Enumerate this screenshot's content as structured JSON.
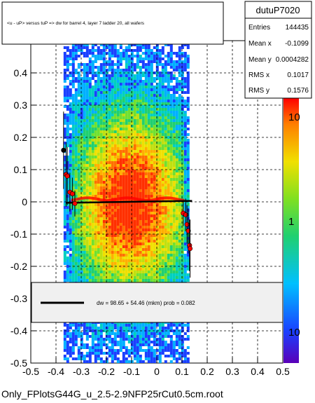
{
  "chart_data": {
    "type": "heatmap",
    "title": "<u - uP>       versus  tuP =>  dw for barrel 4, layer 7 ladder 20, all wafers",
    "xlabel": "",
    "ylabel": "",
    "xlim": [
      -0.5,
      0.5
    ],
    "ylim": [
      -0.5,
      0.5
    ],
    "x_ticks": [
      "-0.5",
      "-0.4",
      "-0.3",
      "-0.2",
      "-0.1",
      "0",
      "0.1",
      "0.2",
      "0.3",
      "0.4",
      "0.5"
    ],
    "y_ticks": [
      "-0.5",
      "-0.4",
      "-0.3",
      "-0.2",
      "-0.1",
      "0",
      "0.1",
      "0.2",
      "0.3",
      "0.4"
    ],
    "grid": true,
    "colorbar": {
      "scale": "log",
      "labels": [
        "10",
        "1",
        "10"
      ]
    },
    "density_region": {
      "x_range": [
        -0.37,
        0.13
      ],
      "y_range": [
        -0.5,
        0.5
      ]
    },
    "profile_points": [
      {
        "x": -0.37,
        "y": 0.16,
        "err": 0.12
      },
      {
        "x": -0.36,
        "y": 0.085,
        "err": 0.1
      },
      {
        "x": -0.355,
        "y": 0.08,
        "err": 0.09
      },
      {
        "x": -0.345,
        "y": 0.03,
        "err": 0.06
      },
      {
        "x": -0.335,
        "y": 0.025,
        "err": 0.05
      },
      {
        "x": -0.325,
        "y": -0.005,
        "err": 0.04
      },
      {
        "x": 0.105,
        "y": -0.035,
        "err": 0.04
      },
      {
        "x": 0.115,
        "y": -0.04,
        "err": 0.05
      },
      {
        "x": 0.12,
        "y": -0.07,
        "err": 0.06
      },
      {
        "x": 0.125,
        "y": -0.09,
        "err": 0.07
      },
      {
        "x": 0.13,
        "y": -0.135,
        "err": 0.08
      },
      {
        "x": 0.132,
        "y": -0.145,
        "err": 0.09
      }
    ],
    "fit_line": {
      "x": [
        -0.36,
        0.14
      ],
      "y": [
        -0.003,
        0.003
      ]
    }
  },
  "stats_box": {
    "name": "dutuP7020",
    "rows": [
      {
        "label": "Entries",
        "value": "144435"
      },
      {
        "label": "Mean x",
        "value": "-0.1099"
      },
      {
        "label": "Mean y",
        "value": "0.0004282"
      },
      {
        "label": "RMS x",
        "value": "0.1017"
      },
      {
        "label": "RMS y",
        "value": "0.1576"
      }
    ]
  },
  "legend": {
    "text": "dw =   98.65 + 54.46 (mkm) prob = 0.082"
  },
  "footer": {
    "filename": "Only_FPlotsG44G_u_2.5-2.9NFP25rCut0.5cm.root"
  },
  "colors": {
    "fit_line": "#000000",
    "profile_markers": "#ff0000",
    "legend_fill": "#f0f0f0"
  }
}
